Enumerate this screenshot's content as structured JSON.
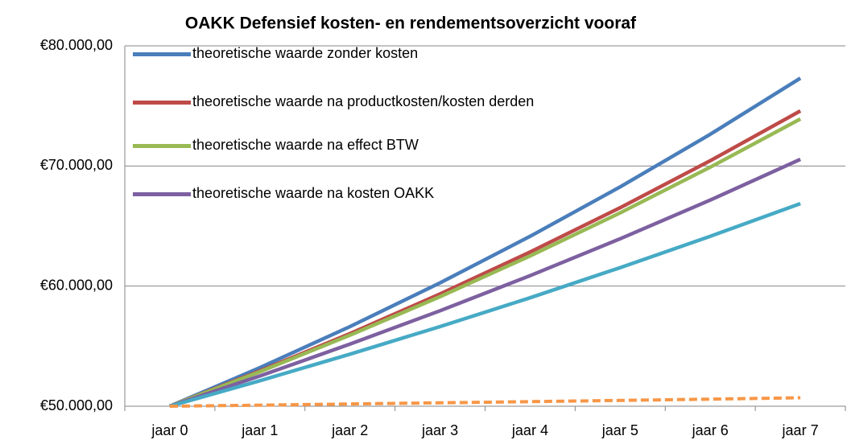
{
  "chart_data": {
    "type": "line",
    "title": "OAKK Defensief kosten- en rendementsoverzicht vooraf",
    "categories": [
      "jaar 0",
      "jaar 1",
      "jaar 2",
      "jaar 3",
      "jaar 4",
      "jaar 5",
      "jaar 6",
      "jaar 7"
    ],
    "series": [
      {
        "name": "theoretische waarde zonder kosten",
        "color": "#4a7ebb",
        "values": [
          50000,
          53210,
          56630,
          60270,
          64140,
          68260,
          72640,
          77310
        ]
      },
      {
        "name": "theoretische waarde na productkosten/kosten derden",
        "color": "#be4b48",
        "values": [
          50000,
          52940,
          56050,
          59350,
          62840,
          66530,
          70440,
          74580
        ]
      },
      {
        "name": "theoretische waarde na effect BTW",
        "color": "#98b954",
        "values": [
          50000,
          52870,
          55910,
          59120,
          62510,
          66100,
          69900,
          73910
        ]
      },
      {
        "name": "theoretische waarde na kosten OAKK",
        "color": "#7d60a0",
        "values": [
          50000,
          52520,
          55170,
          57950,
          60870,
          63940,
          67160,
          70550
        ]
      },
      {
        "color": "#46aac5",
        "values": [
          50000,
          52120,
          54330,
          56630,
          59030,
          61540,
          64150,
          66870
        ]
      },
      {
        "color": "#f79646",
        "dashed": true,
        "values": [
          50000,
          50090,
          50190,
          50280,
          50380,
          50480,
          50590,
          50700
        ]
      }
    ],
    "ylim": [
      50000,
      80000
    ],
    "yticks": [
      {
        "value": 50000,
        "label": "€50.000,00"
      },
      {
        "value": 60000,
        "label": "€60.000,00"
      },
      {
        "value": 70000,
        "label": "€70.000,00"
      },
      {
        "value": 80000,
        "label": "€80.000,00"
      }
    ],
    "grid": true,
    "legend": "top-left"
  }
}
